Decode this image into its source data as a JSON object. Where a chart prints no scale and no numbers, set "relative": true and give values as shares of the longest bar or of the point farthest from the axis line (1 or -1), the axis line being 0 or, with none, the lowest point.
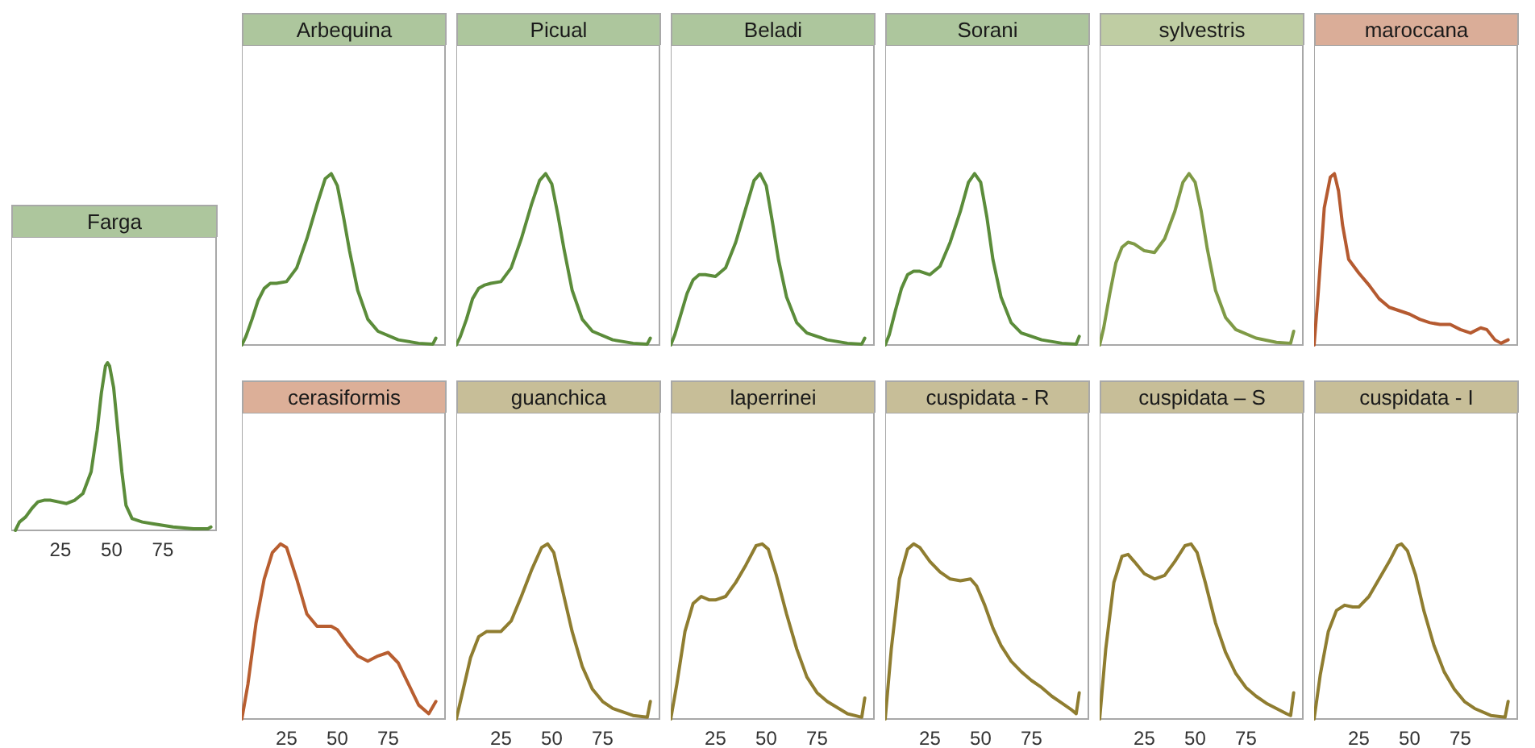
{
  "chart_data": [
    {
      "type": "line",
      "title": "Farga",
      "relative": true,
      "color": "#5b8c3a",
      "marker": "none",
      "line_style": "solid",
      "xlim": [
        1,
        101
      ],
      "xticks": [
        25,
        50,
        75
      ],
      "tick_labels": "x",
      "x": [
        3,
        5,
        8,
        11,
        14,
        17,
        20,
        24,
        28,
        32,
        36,
        40,
        43,
        45,
        47,
        48,
        49,
        51,
        53,
        55,
        57,
        60,
        65,
        70,
        80,
        90,
        97,
        98.5
      ],
      "values": [
        0,
        0.05,
        0.08,
        0.13,
        0.17,
        0.18,
        0.18,
        0.17,
        0.16,
        0.18,
        0.22,
        0.35,
        0.6,
        0.82,
        0.98,
        1,
        0.98,
        0.85,
        0.6,
        0.35,
        0.15,
        0.07,
        0.05,
        0.04,
        0.02,
        0.01,
        0.01,
        0.02
      ]
    },
    {
      "type": "line",
      "title": "Arbequina",
      "relative": true,
      "color": "#5b8c3a",
      "marker": "none",
      "line_style": "solid",
      "xlim": [
        3,
        103
      ],
      "xticks": [
        25,
        50,
        75
      ],
      "tick_labels": false,
      "x": [
        3,
        5,
        8,
        11,
        14,
        17,
        20,
        25,
        30,
        35,
        40,
        44,
        47,
        50,
        53,
        56,
        60,
        65,
        70,
        80,
        90,
        97,
        98.5
      ],
      "values": [
        0,
        0.05,
        0.15,
        0.26,
        0.33,
        0.36,
        0.36,
        0.37,
        0.45,
        0.62,
        0.82,
        0.97,
        1,
        0.93,
        0.75,
        0.55,
        0.32,
        0.15,
        0.08,
        0.03,
        0.01,
        0.005,
        0.04
      ]
    },
    {
      "type": "line",
      "title": "Picual",
      "relative": true,
      "color": "#5b8c3a",
      "marker": "none",
      "line_style": "solid",
      "xlim": [
        3,
        103
      ],
      "xticks": [
        25,
        50,
        75
      ],
      "tick_labels": false,
      "x": [
        3,
        5,
        8,
        11,
        14,
        17,
        20,
        25,
        30,
        35,
        40,
        44,
        47,
        50,
        53,
        56,
        60,
        65,
        70,
        80,
        90,
        97,
        98.5
      ],
      "values": [
        0,
        0.05,
        0.15,
        0.27,
        0.33,
        0.35,
        0.36,
        0.37,
        0.45,
        0.62,
        0.82,
        0.96,
        1,
        0.94,
        0.76,
        0.56,
        0.32,
        0.15,
        0.08,
        0.03,
        0.01,
        0.005,
        0.04
      ]
    },
    {
      "type": "line",
      "title": "Beladi",
      "relative": true,
      "color": "#5b8c3a",
      "marker": "none",
      "line_style": "solid",
      "xlim": [
        3,
        103
      ],
      "xticks": [
        25,
        50,
        75
      ],
      "tick_labels": false,
      "x": [
        3,
        5,
        8,
        11,
        14,
        17,
        20,
        25,
        30,
        35,
        40,
        44,
        47,
        50,
        53,
        56,
        60,
        65,
        70,
        80,
        90,
        97,
        98.5
      ],
      "values": [
        0,
        0.06,
        0.18,
        0.3,
        0.38,
        0.41,
        0.41,
        0.4,
        0.45,
        0.6,
        0.8,
        0.96,
        1,
        0.93,
        0.72,
        0.5,
        0.28,
        0.13,
        0.07,
        0.03,
        0.01,
        0.005,
        0.04
      ]
    },
    {
      "type": "line",
      "title": "Sorani",
      "relative": true,
      "color": "#5b8c3a",
      "marker": "none",
      "line_style": "solid",
      "xlim": [
        3,
        103
      ],
      "xticks": [
        25,
        50,
        75
      ],
      "tick_labels": false,
      "x": [
        3,
        5,
        8,
        11,
        14,
        17,
        20,
        25,
        30,
        35,
        40,
        44,
        47,
        50,
        53,
        56,
        60,
        65,
        70,
        80,
        90,
        97,
        98.5
      ],
      "values": [
        0,
        0.06,
        0.2,
        0.33,
        0.41,
        0.43,
        0.43,
        0.41,
        0.46,
        0.6,
        0.78,
        0.95,
        1,
        0.95,
        0.75,
        0.5,
        0.28,
        0.13,
        0.07,
        0.03,
        0.01,
        0.005,
        0.05
      ]
    },
    {
      "type": "line",
      "title": "sylvestris",
      "relative": true,
      "color": "#7f9a46",
      "marker": "none",
      "line_style": "solid",
      "xlim": [
        3,
        103
      ],
      "xticks": [
        25,
        50,
        75
      ],
      "tick_labels": false,
      "x": [
        3,
        5,
        8,
        11,
        14,
        17,
        20,
        25,
        30,
        35,
        40,
        44,
        47,
        50,
        53,
        56,
        60,
        65,
        70,
        80,
        90,
        97,
        98.5
      ],
      "values": [
        0,
        0.1,
        0.3,
        0.48,
        0.57,
        0.6,
        0.59,
        0.55,
        0.54,
        0.62,
        0.78,
        0.95,
        1,
        0.95,
        0.78,
        0.56,
        0.32,
        0.16,
        0.09,
        0.04,
        0.015,
        0.01,
        0.08
      ]
    },
    {
      "type": "line",
      "title": "maroccana",
      "relative": true,
      "color": "#b55a30",
      "marker": "none",
      "line_style": "solid",
      "xlim": [
        3,
        103
      ],
      "xticks": [
        25,
        50,
        75
      ],
      "tick_labels": false,
      "x": [
        3,
        5,
        8,
        11,
        13,
        15,
        17,
        20,
        25,
        30,
        35,
        40,
        45,
        50,
        55,
        60,
        65,
        70,
        75,
        80,
        85,
        88,
        92,
        95,
        98.5
      ],
      "values": [
        0,
        0.3,
        0.8,
        0.98,
        1,
        0.9,
        0.7,
        0.5,
        0.42,
        0.35,
        0.27,
        0.22,
        0.2,
        0.18,
        0.15,
        0.13,
        0.12,
        0.12,
        0.09,
        0.07,
        0.1,
        0.09,
        0.03,
        0.01,
        0.03
      ]
    },
    {
      "type": "line",
      "title": "cerasiformis",
      "relative": true,
      "color": "#b85e30",
      "marker": "none",
      "line_style": "solid",
      "xlim": [
        3,
        103
      ],
      "xticks": [
        25,
        50,
        75
      ],
      "tick_labels": "x",
      "x": [
        3,
        6,
        10,
        14,
        18,
        22,
        25,
        30,
        35,
        40,
        47,
        50,
        55,
        60,
        65,
        70,
        75,
        80,
        85,
        90,
        95,
        98.5
      ],
      "values": [
        0,
        0.2,
        0.55,
        0.8,
        0.95,
        1,
        0.98,
        0.8,
        0.6,
        0.53,
        0.53,
        0.51,
        0.43,
        0.36,
        0.33,
        0.36,
        0.38,
        0.32,
        0.2,
        0.08,
        0.03,
        0.1
      ]
    },
    {
      "type": "line",
      "title": "guanchica",
      "relative": true,
      "color": "#8f7d30",
      "marker": "none",
      "line_style": "solid",
      "xlim": [
        3,
        103
      ],
      "xticks": [
        25,
        50,
        75
      ],
      "tick_labels": "x",
      "x": [
        3,
        6,
        10,
        14,
        18,
        22,
        25,
        30,
        35,
        40,
        45,
        48,
        51,
        55,
        60,
        65,
        70,
        75,
        80,
        90,
        97,
        98.5
      ],
      "values": [
        0,
        0.15,
        0.35,
        0.47,
        0.5,
        0.5,
        0.5,
        0.56,
        0.7,
        0.85,
        0.98,
        1,
        0.95,
        0.75,
        0.5,
        0.3,
        0.17,
        0.1,
        0.06,
        0.02,
        0.01,
        0.1
      ]
    },
    {
      "type": "line",
      "title": "laperrinei",
      "relative": true,
      "color": "#8f7d30",
      "marker": "none",
      "line_style": "solid",
      "xlim": [
        3,
        103
      ],
      "xticks": [
        25,
        50,
        75
      ],
      "tick_labels": "x",
      "x": [
        3,
        6,
        10,
        14,
        18,
        22,
        25,
        30,
        35,
        40,
        45,
        48,
        51,
        55,
        60,
        65,
        70,
        75,
        80,
        90,
        97,
        98.5
      ],
      "values": [
        0,
        0.2,
        0.5,
        0.66,
        0.7,
        0.68,
        0.68,
        0.7,
        0.78,
        0.88,
        0.99,
        1,
        0.97,
        0.82,
        0.6,
        0.4,
        0.24,
        0.15,
        0.1,
        0.03,
        0.01,
        0.12
      ]
    },
    {
      "type": "line",
      "title": "cuspidata - R",
      "relative": true,
      "color": "#8f7d30",
      "marker": "none",
      "line_style": "solid",
      "xlim": [
        3,
        103
      ],
      "xticks": [
        25,
        50,
        75
      ],
      "tick_labels": "x",
      "x": [
        3,
        6,
        10,
        14,
        17,
        20,
        25,
        30,
        35,
        40,
        45,
        48,
        52,
        56,
        60,
        65,
        70,
        75,
        80,
        85,
        90,
        95,
        97,
        98.5
      ],
      "values": [
        0,
        0.4,
        0.8,
        0.97,
        1,
        0.98,
        0.9,
        0.84,
        0.8,
        0.79,
        0.8,
        0.76,
        0.65,
        0.52,
        0.42,
        0.33,
        0.27,
        0.22,
        0.18,
        0.13,
        0.09,
        0.05,
        0.03,
        0.15
      ]
    },
    {
      "type": "line",
      "title": "cuspidata – S",
      "relative": true,
      "color": "#8f7d30",
      "marker": "none",
      "line_style": "solid",
      "xlim": [
        3,
        103
      ],
      "xticks": [
        25,
        50,
        75
      ],
      "tick_labels": "x",
      "x": [
        3,
        6,
        10,
        14,
        17,
        20,
        25,
        30,
        35,
        40,
        45,
        48,
        51,
        55,
        60,
        65,
        70,
        75,
        80,
        85,
        90,
        95,
        97,
        98.5
      ],
      "values": [
        0,
        0.4,
        0.78,
        0.93,
        0.94,
        0.9,
        0.83,
        0.8,
        0.82,
        0.9,
        0.99,
        1,
        0.95,
        0.78,
        0.55,
        0.38,
        0.26,
        0.18,
        0.13,
        0.09,
        0.06,
        0.03,
        0.02,
        0.15
      ]
    },
    {
      "type": "line",
      "title": "cuspidata - I",
      "relative": true,
      "color": "#8f7d30",
      "marker": "none",
      "line_style": "solid",
      "xlim": [
        3,
        103
      ],
      "xticks": [
        25,
        50,
        75
      ],
      "tick_labels": "x",
      "x": [
        3,
        6,
        10,
        14,
        18,
        22,
        25,
        30,
        35,
        40,
        44,
        46,
        49,
        53,
        57,
        62,
        67,
        72,
        77,
        82,
        90,
        97,
        98.5
      ],
      "values": [
        0,
        0.25,
        0.5,
        0.62,
        0.65,
        0.64,
        0.64,
        0.7,
        0.8,
        0.9,
        0.99,
        1,
        0.96,
        0.82,
        0.62,
        0.42,
        0.27,
        0.17,
        0.1,
        0.06,
        0.02,
        0.01,
        0.1
      ]
    }
  ]
}
